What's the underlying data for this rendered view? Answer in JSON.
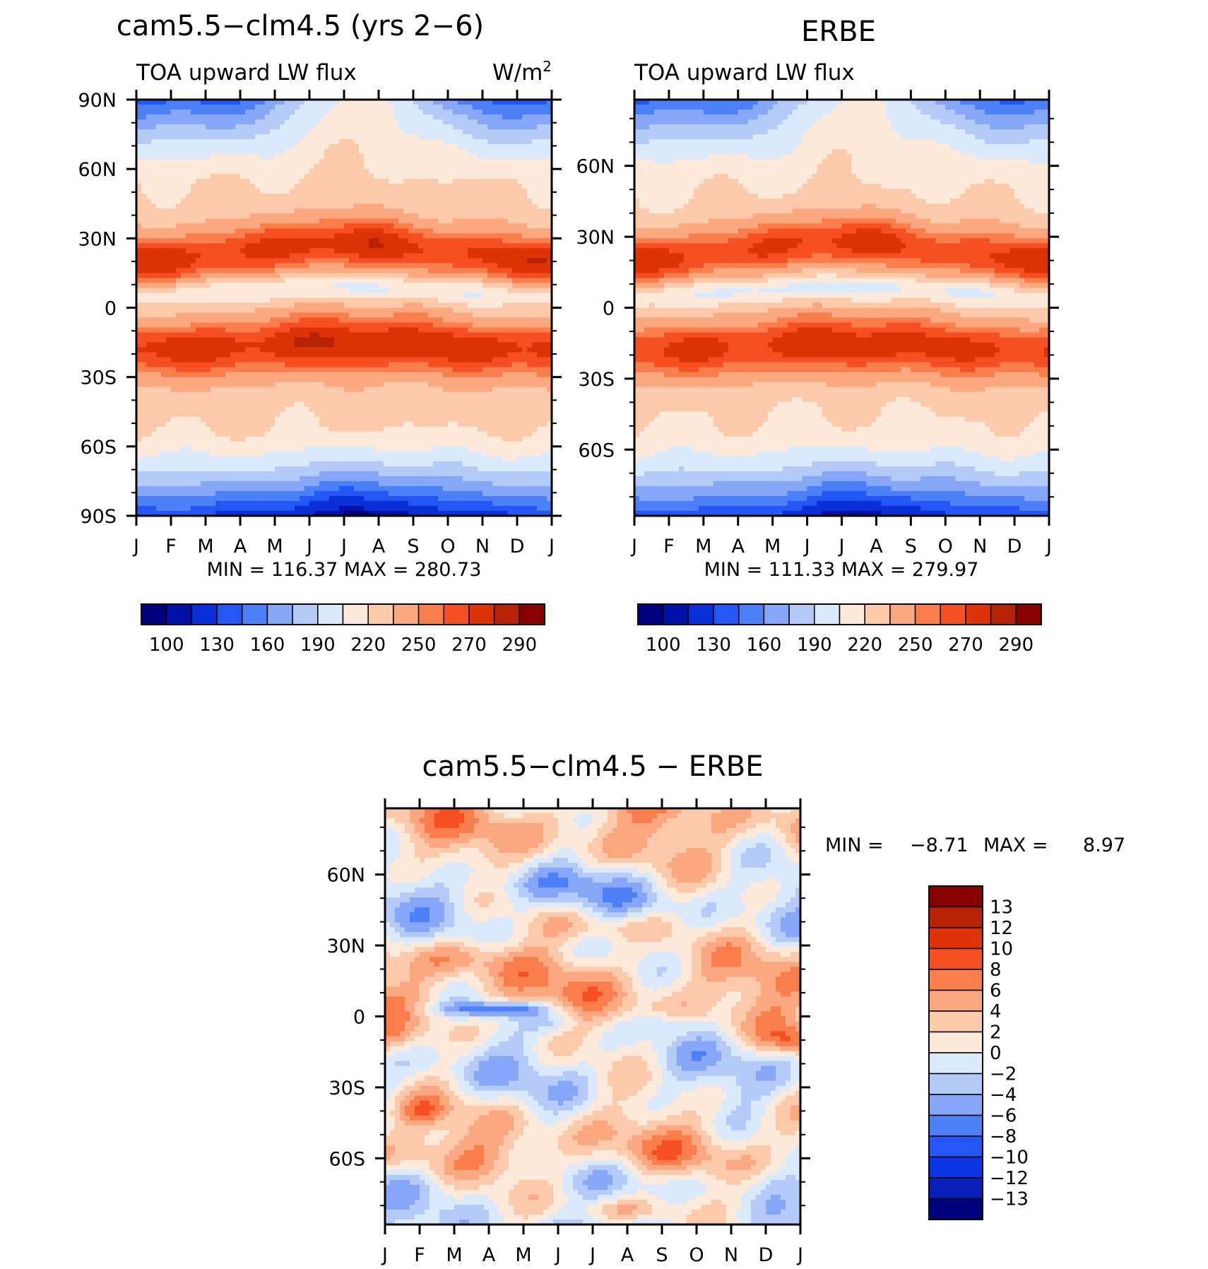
{
  "colors": {
    "abs_palette": [
      "#00007f",
      "#0011a8",
      "#0a2fd9",
      "#2456f5",
      "#4d7ff7",
      "#86a6f7",
      "#b4cbf9",
      "#dae9fb",
      "#fde9da",
      "#fcc9aa",
      "#fba77f",
      "#fa7d4c",
      "#f54f22",
      "#dd3306",
      "#b52205",
      "#860000"
    ],
    "diff_palette": [
      "#00007f",
      "#0a1fb8",
      "#0a35e0",
      "#2456f5",
      "#4d7ff7",
      "#86a6f7",
      "#b4cbf9",
      "#dae9fb",
      "#fde9da",
      "#fcc9aa",
      "#fba77f",
      "#fa7d4c",
      "#f54f22",
      "#dd3306",
      "#b52205",
      "#860000"
    ]
  },
  "chart_data": [
    {
      "type": "heatmap",
      "title": "cam5.5−clm4.5 (yrs 2−6)",
      "left_label": "TOA upward LW flux",
      "right_label": "W/m",
      "right_label_sup": "2",
      "x_ticks": [
        "J",
        "F",
        "M",
        "A",
        "M",
        "J",
        "J",
        "A",
        "S",
        "O",
        "N",
        "D",
        "J"
      ],
      "y_ticks": [
        "90N",
        "60N",
        "30N",
        "0",
        "30S",
        "60S",
        "90S"
      ],
      "y_tick_values": [
        90,
        60,
        30,
        0,
        -30,
        -60,
        -90
      ],
      "ylim": [
        -90,
        90
      ],
      "stats": "MIN = 116.37 MAX = 280.73",
      "colorbar_labels": [
        "100",
        "130",
        "160",
        "190",
        "220",
        "250",
        "270",
        "290"
      ],
      "colorbar_levels": [
        100,
        110,
        130,
        145,
        160,
        175,
        190,
        205,
        220,
        235,
        250,
        260,
        270,
        280,
        290
      ],
      "field": {
        "north_pole": [
          175,
          135,
          190,
          210
        ],
        "south_pole": [
          165,
          122,
          190,
          210
        ],
        "sh_max": 280.7,
        "nh_max": 277,
        "dip": 245
      }
    },
    {
      "type": "heatmap",
      "title": "ERBE",
      "left_label": "TOA upward LW flux",
      "x_ticks": [
        "J",
        "F",
        "M",
        "A",
        "M",
        "J",
        "J",
        "A",
        "S",
        "O",
        "N",
        "D",
        "J"
      ],
      "y_ticks": [
        "60N",
        "30N",
        "0",
        "30S",
        "60S"
      ],
      "y_tick_values": [
        60,
        30,
        0,
        -30,
        -60
      ],
      "ylim": [
        -88,
        88
      ],
      "stats": "MIN = 111.33 MAX = 279.97",
      "colorbar_labels": [
        "100",
        "130",
        "160",
        "190",
        "220",
        "250",
        "270",
        "290"
      ],
      "colorbar_levels": [
        100,
        110,
        130,
        145,
        160,
        175,
        190,
        205,
        220,
        235,
        250,
        260,
        270,
        280,
        290
      ],
      "field": {
        "north_pole": [
          170,
          130,
          190,
          210
        ],
        "south_pole": [
          160,
          112,
          190,
          210
        ],
        "sh_max": 279.9,
        "nh_max": 273,
        "dip": 240
      }
    },
    {
      "type": "heatmap",
      "title": "cam5.5−clm4.5 − ERBE",
      "x_ticks": [
        "J",
        "F",
        "M",
        "A",
        "M",
        "J",
        "J",
        "A",
        "S",
        "O",
        "N",
        "D",
        "J"
      ],
      "y_ticks": [
        "60N",
        "30N",
        "0",
        "30S",
        "60S"
      ],
      "y_tick_values": [
        60,
        30,
        0,
        -30,
        -60
      ],
      "ylim": [
        -88,
        88
      ],
      "stats_label_min": "MIN =",
      "stats_min": "−8.71",
      "stats_label_max": "MAX =",
      "stats_max": "8.97",
      "colorbar_labels": [
        "13",
        "12",
        "10",
        "8",
        "6",
        "4",
        "2",
        "0",
        "−2",
        "−4",
        "−6",
        "−8",
        "−10",
        "−12",
        "−13"
      ],
      "colorbar_levels": [
        -13,
        -12,
        -10,
        -8,
        -6,
        -4,
        -2,
        0,
        2,
        4,
        6,
        8,
        10,
        12,
        13
      ]
    }
  ]
}
